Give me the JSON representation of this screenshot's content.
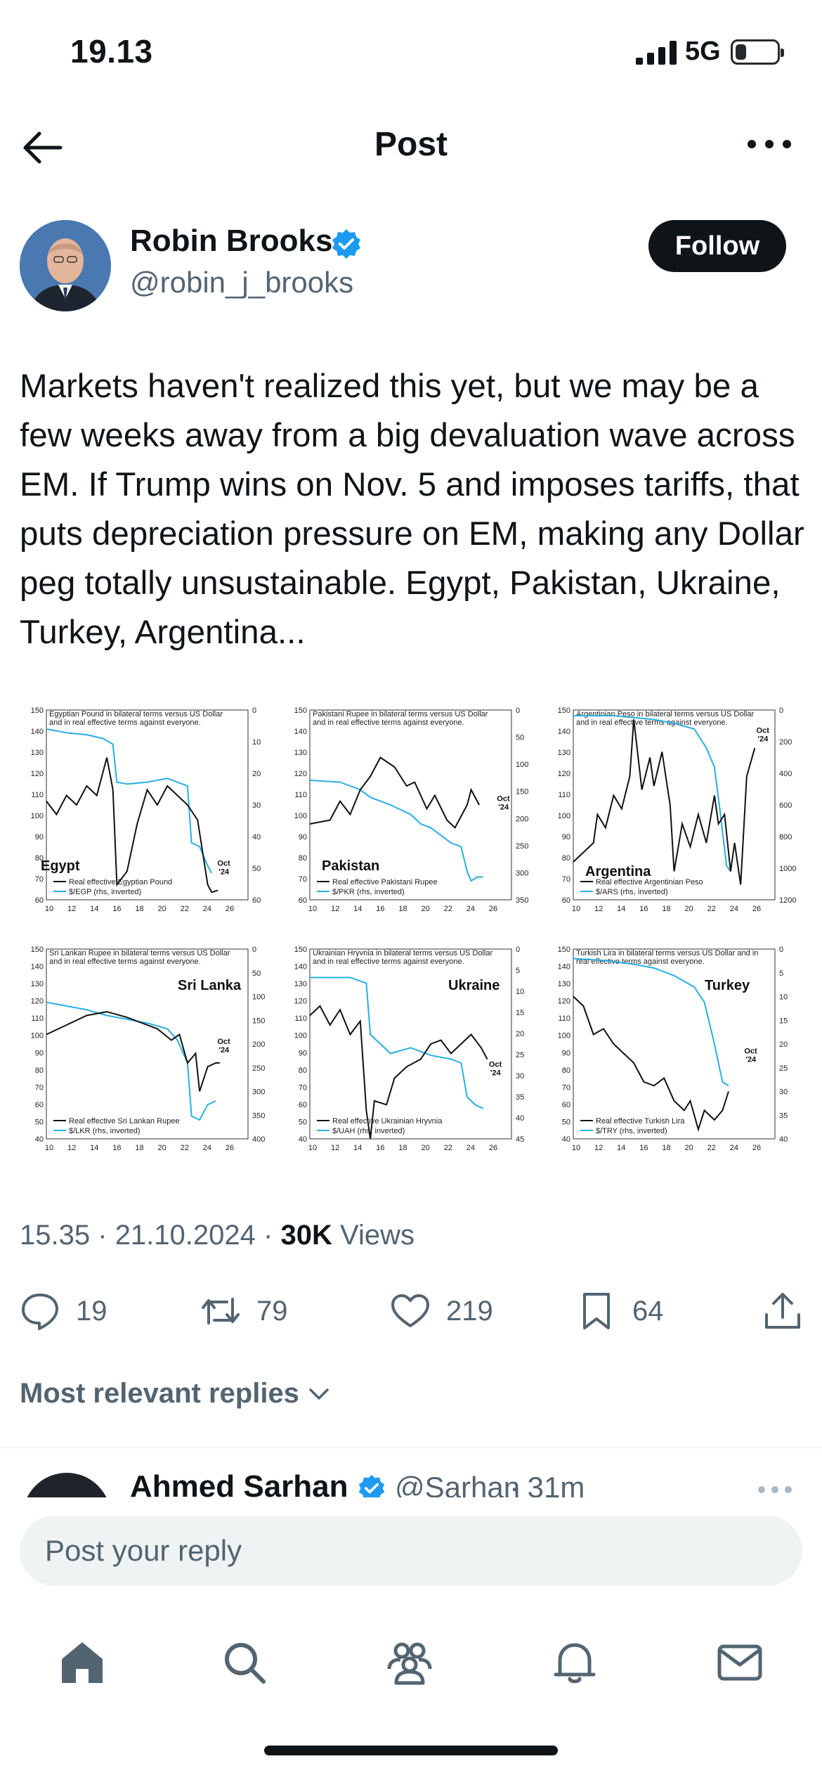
{
  "status": {
    "time": "19.13",
    "network": "5G",
    "battery_level": 0.25
  },
  "header": {
    "title": "Post"
  },
  "author": {
    "name": "Robin Brooks",
    "handle": "@robin_j_brooks",
    "follow_label": "Follow"
  },
  "tweet": {
    "text": "Markets haven't realized this yet, but we may be a few weeks away from a big devaluation wave across EM. If Trump wins on Nov. 5 and imposes tariffs, that puts depreciation pressure on EM, making any Dollar peg totally unsustainable. Egypt, Pakistan, Ukraine, Turkey, Argentina..."
  },
  "charts": [
    {
      "title_line1": "Egyptian Pound in bilateral terms versus US Dollar",
      "title_line2": "and in real effective terms against everyone.",
      "name": "Egypt",
      "legend_black": "Real effective Egyptian Pound",
      "legend_blue": "$/EGP (rhs, inverted)",
      "left_ticks": [
        "150",
        "140",
        "130",
        "120",
        "110",
        "100",
        "90",
        "80",
        "70",
        "60"
      ],
      "right_ticks": [
        "0",
        "10",
        "20",
        "30",
        "40",
        "50",
        "60"
      ],
      "x_ticks": [
        "10",
        "12",
        "14",
        "16",
        "18",
        "20",
        "22",
        "24",
        "26"
      ],
      "oct_label": [
        "Oct",
        "'24"
      ]
    },
    {
      "title_line1": "Pakistani Rupee in bilateral terms versus US Dollar",
      "title_line2": "and in real effective terms against everyone.",
      "name": "Pakistan",
      "legend_black": "Real effective Pakistani Rupee",
      "legend_blue": "$/PKR (rhs, inverted)",
      "left_ticks": [
        "150",
        "140",
        "130",
        "120",
        "110",
        "100",
        "90",
        "80",
        "70",
        "60"
      ],
      "right_ticks": [
        "0",
        "50",
        "100",
        "150",
        "200",
        "250",
        "300",
        "350"
      ],
      "x_ticks": [
        "10",
        "12",
        "14",
        "16",
        "18",
        "20",
        "22",
        "24",
        "26"
      ],
      "oct_label": [
        "Oct",
        "'24"
      ]
    },
    {
      "title_line1": "Argentinian Peso in bilateral terms versus US Dollar",
      "title_line2": "and in real effective terms against everyone.",
      "name": "Argentina",
      "legend_black": "Real effective Argentinian Peso",
      "legend_blue": "$/ARS (rhs, inverted)",
      "left_ticks": [
        "150",
        "140",
        "130",
        "120",
        "110",
        "100",
        "90",
        "80",
        "70",
        "60"
      ],
      "right_ticks": [
        "0",
        "200",
        "400",
        "600",
        "800",
        "1000",
        "1200"
      ],
      "x_ticks": [
        "10",
        "12",
        "14",
        "16",
        "18",
        "20",
        "22",
        "24",
        "26"
      ],
      "oct_label": [
        "Oct",
        "'24"
      ]
    },
    {
      "title_line1": "Sri Lankan Rupee in bilateral terms versus US Dollar",
      "title_line2": "and in real effective terms against everyone.",
      "name": "Sri Lanka",
      "legend_black": "Real effective Sri Lankan Rupee",
      "legend_blue": "$/LKR (rhs, inverted)",
      "left_ticks": [
        "150",
        "140",
        "130",
        "120",
        "110",
        "100",
        "90",
        "80",
        "70",
        "60",
        "50",
        "40"
      ],
      "right_ticks": [
        "0",
        "50",
        "100",
        "150",
        "200",
        "250",
        "300",
        "350",
        "400"
      ],
      "x_ticks": [
        "10",
        "12",
        "14",
        "16",
        "18",
        "20",
        "22",
        "24",
        "26"
      ],
      "oct_label": [
        "Oct",
        "'24"
      ]
    },
    {
      "title_line1": "Ukrainian Hryvnia in bilateral terms versus US Dollar",
      "title_line2": "and in real effective terms against everyone.",
      "name": "Ukraine",
      "legend_black": "Real effective Ukrainian Hryvnia",
      "legend_blue": "$/UAH (rhs, inverted)",
      "left_ticks": [
        "150",
        "140",
        "130",
        "120",
        "110",
        "100",
        "90",
        "80",
        "70",
        "60",
        "50",
        "40"
      ],
      "right_ticks": [
        "0",
        "5",
        "10",
        "15",
        "20",
        "25",
        "30",
        "35",
        "40",
        "45"
      ],
      "x_ticks": [
        "10",
        "12",
        "14",
        "16",
        "18",
        "20",
        "22",
        "24",
        "26"
      ],
      "oct_label": [
        "Oct",
        "'24"
      ]
    },
    {
      "title_line1": "Turkish Lira in bilateral terms versus US Dollar and in",
      "title_line2": "real effective terms against everyone.",
      "name": "Turkey",
      "legend_black": "Real effective Turkish Lira",
      "legend_blue": "$/TRY (rhs, inverted)",
      "left_ticks": [
        "150",
        "140",
        "130",
        "120",
        "110",
        "100",
        "90",
        "80",
        "70",
        "60",
        "50",
        "40"
      ],
      "right_ticks": [
        "0",
        "5",
        "10",
        "15",
        "20",
        "25",
        "30",
        "35",
        "40"
      ],
      "x_ticks": [
        "10",
        "12",
        "14",
        "16",
        "18",
        "20",
        "22",
        "24",
        "26"
      ],
      "oct_label": [
        "Oct",
        "'24"
      ]
    }
  ],
  "meta": {
    "time": "15.35",
    "date": "21.10.2024",
    "views_count": "30K",
    "views_label": "Views",
    "sep": "·"
  },
  "actions": {
    "replies": "19",
    "reposts": "79",
    "likes": "219",
    "bookmarks": "64"
  },
  "relevant_label": "Most relevant replies",
  "reply_peek": {
    "name": "Ahmed Sarhan",
    "handle": "@Sarhan",
    "time": "· 31m"
  },
  "composer": {
    "placeholder": "Post your reply"
  },
  "colors": {
    "accent": "#1d9bf0",
    "text": "#0f1419",
    "muted": "#536471",
    "chart_blue": "#29aee6"
  }
}
